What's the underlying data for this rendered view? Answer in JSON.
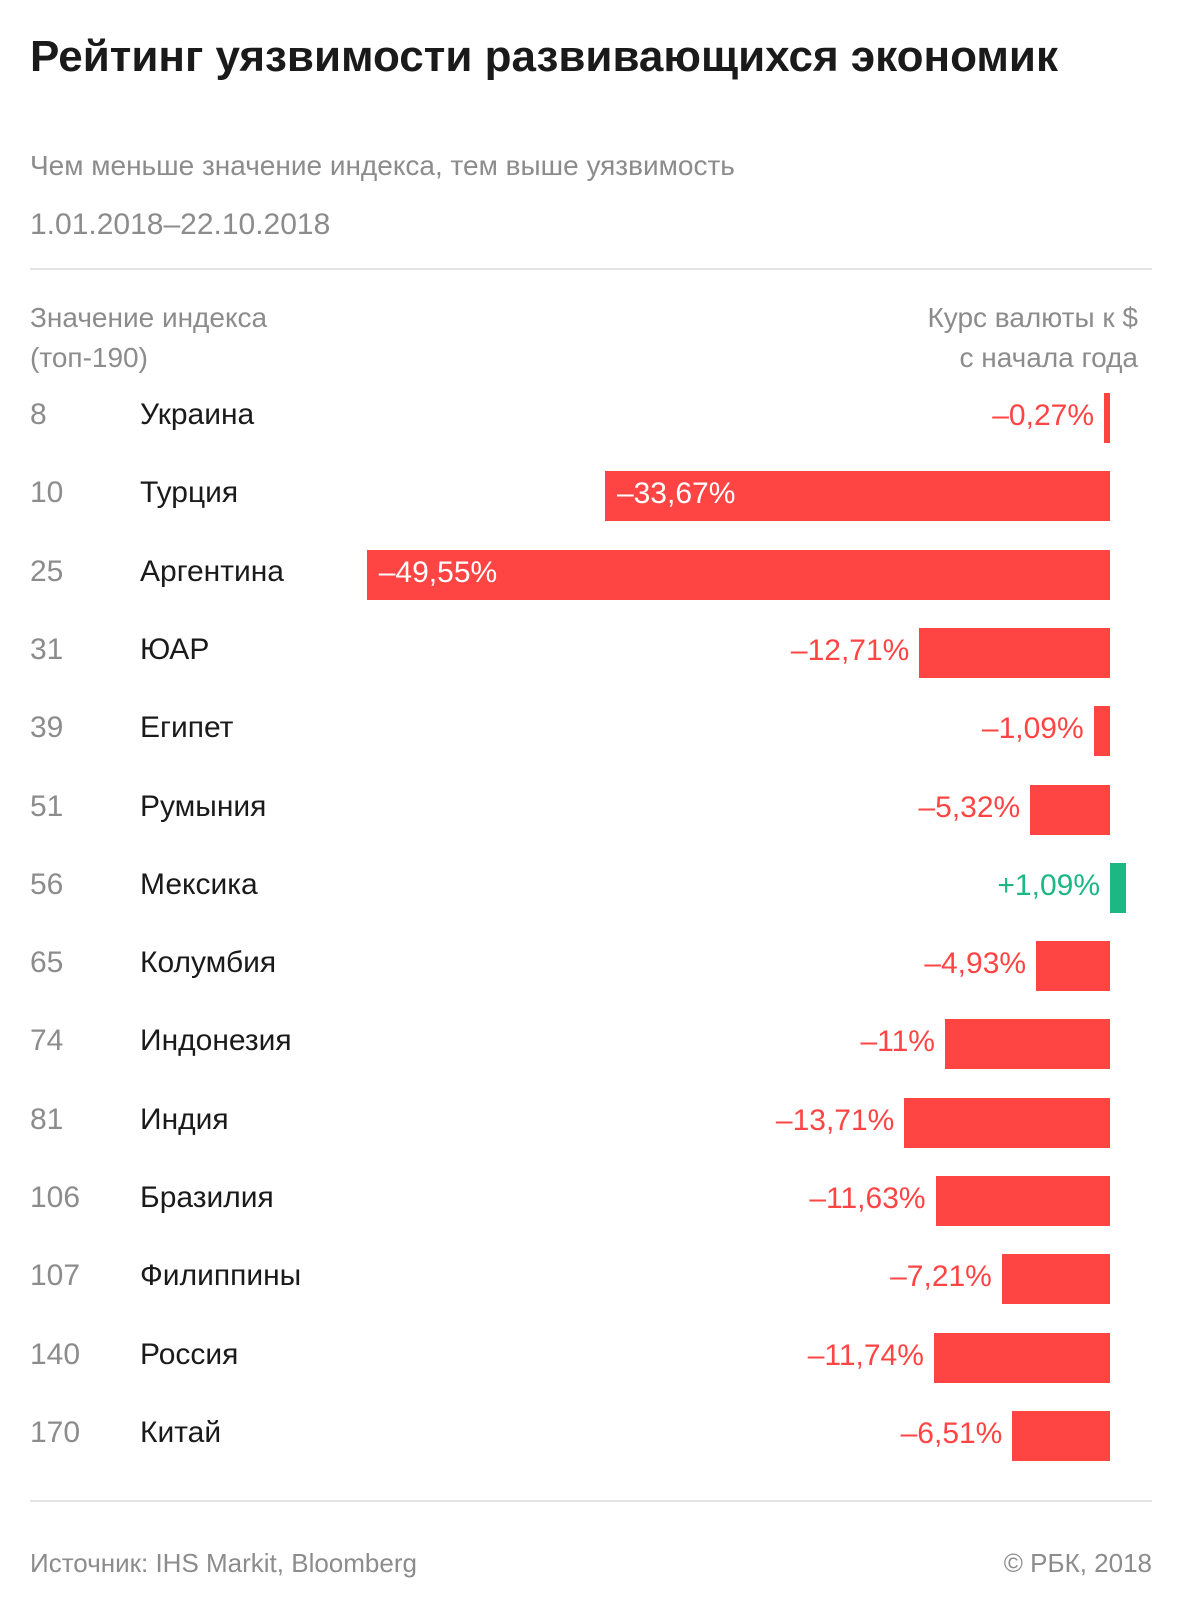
{
  "header": {
    "title": "Рейтинг уязвимости развивающихся экономик",
    "subtitle": "Чем меньше значение индекса, тем выше уязвимость",
    "period": "1.01.2018–22.10.2018"
  },
  "columns": {
    "left_line1": "Значение индекса",
    "left_line2": "(топ-190)",
    "right_line1": "Курс валюты к $",
    "right_line2": "с начала года"
  },
  "colors": {
    "negative": "#ff4444",
    "positive": "#1db784",
    "text": "#1a1a1a",
    "muted": "#8c8c8c"
  },
  "chart_data": {
    "type": "bar",
    "orientation": "horizontal",
    "value_unit": "%",
    "categories": [
      "Украина",
      "Турция",
      "Аргентина",
      "ЮАР",
      "Египет",
      "Румыния",
      "Мексика",
      "Колумбия",
      "Индонезия",
      "Индия",
      "Бразилия",
      "Филиппины",
      "Россия",
      "Китай"
    ],
    "ranks": [
      "8",
      "10",
      "25",
      "31",
      "39",
      "51",
      "56",
      "65",
      "74",
      "81",
      "106",
      "107",
      "140",
      "170"
    ],
    "values": [
      -0.27,
      -33.67,
      -49.55,
      -12.71,
      -1.09,
      -5.32,
      1.09,
      -4.93,
      -11,
      -13.71,
      -11.63,
      -7.21,
      -11.74,
      -6.51
    ],
    "value_labels": [
      "–0,27%",
      "–33,67%",
      "–49,55%",
      "–12,71%",
      "–1,09%",
      "–5,32%",
      "+1,09%",
      "–4,93%",
      "–11%",
      "–13,71%",
      "–11,63%",
      "–7,21%",
      "–11,74%",
      "–6,51%"
    ]
  },
  "footer": {
    "source": "Источник: IHS Markit, Bloomberg",
    "copyright": "© РБК, 2018"
  }
}
